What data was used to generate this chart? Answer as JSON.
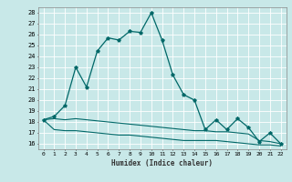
{
  "title": "",
  "xlabel": "Humidex (Indice chaleur)",
  "bg_color": "#c8e8e8",
  "grid_color": "#b0d8d8",
  "line_color": "#006868",
  "x_ticks": [
    0,
    1,
    2,
    3,
    4,
    5,
    6,
    7,
    8,
    9,
    10,
    11,
    12,
    13,
    14,
    15,
    16,
    17,
    18,
    19,
    20,
    21,
    22
  ],
  "ylim": [
    15.5,
    28.5
  ],
  "yticks": [
    16,
    17,
    18,
    19,
    20,
    21,
    22,
    23,
    24,
    25,
    26,
    27,
    28
  ],
  "series1_x": [
    0,
    1,
    2,
    3,
    4,
    5,
    6,
    7,
    8,
    9,
    10,
    11,
    12,
    13,
    14,
    15,
    16,
    17,
    18,
    19,
    20,
    21,
    22
  ],
  "series1_y": [
    18.2,
    18.5,
    19.5,
    23.0,
    21.2,
    24.5,
    25.7,
    25.5,
    26.3,
    26.2,
    28.0,
    25.5,
    22.3,
    20.5,
    20.0,
    17.3,
    18.2,
    17.3,
    18.3,
    17.5,
    16.2,
    17.0,
    16.0
  ],
  "series2_x": [
    0,
    1,
    2,
    3,
    4,
    5,
    6,
    7,
    8,
    9,
    10,
    11,
    12,
    13,
    14,
    15,
    16,
    17,
    18,
    19,
    20,
    21,
    22
  ],
  "series2_y": [
    18.2,
    18.3,
    18.2,
    18.3,
    18.2,
    18.1,
    18.0,
    17.9,
    17.8,
    17.7,
    17.6,
    17.5,
    17.4,
    17.3,
    17.2,
    17.2,
    17.1,
    17.1,
    17.0,
    16.9,
    16.3,
    16.2,
    16.0
  ],
  "series3_x": [
    0,
    1,
    2,
    3,
    4,
    5,
    6,
    7,
    8,
    9,
    10,
    11,
    12,
    13,
    14,
    15,
    16,
    17,
    18,
    19,
    20,
    21,
    22
  ],
  "series3_y": [
    18.2,
    17.3,
    17.2,
    17.2,
    17.1,
    17.0,
    16.9,
    16.8,
    16.8,
    16.7,
    16.6,
    16.5,
    16.4,
    16.3,
    16.3,
    16.3,
    16.3,
    16.2,
    16.1,
    16.0,
    15.9,
    15.9,
    15.8
  ]
}
